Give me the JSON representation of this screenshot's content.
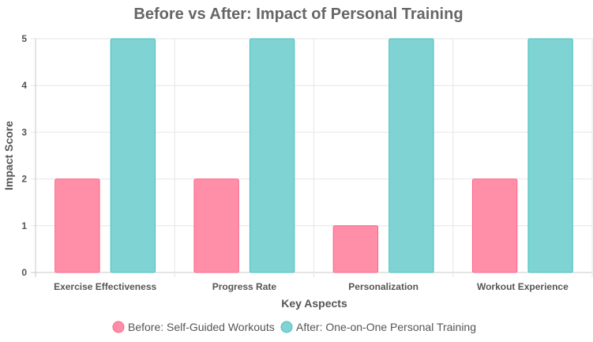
{
  "chart_data": {
    "type": "bar",
    "title": "Before vs After: Impact of Personal Training",
    "xlabel": "Key Aspects",
    "ylabel": "Impact Score",
    "categories": [
      "Exercise Effectiveness",
      "Progress Rate",
      "Personalization",
      "Workout Experience"
    ],
    "series": [
      {
        "name": "Before: Self-Guided Workouts",
        "values": [
          2,
          2,
          1,
          2
        ],
        "color": "#ff8fa8",
        "border": "#ff6384"
      },
      {
        "name": "After: One-on-One Personal Training",
        "values": [
          5,
          5,
          5,
          5
        ],
        "color": "#80d3d3",
        "border": "#4bc0c0"
      }
    ],
    "ylim": [
      0,
      5
    ],
    "yticks": [
      0,
      1,
      2,
      3,
      4,
      5
    ],
    "grid": true,
    "legend_position": "bottom"
  }
}
